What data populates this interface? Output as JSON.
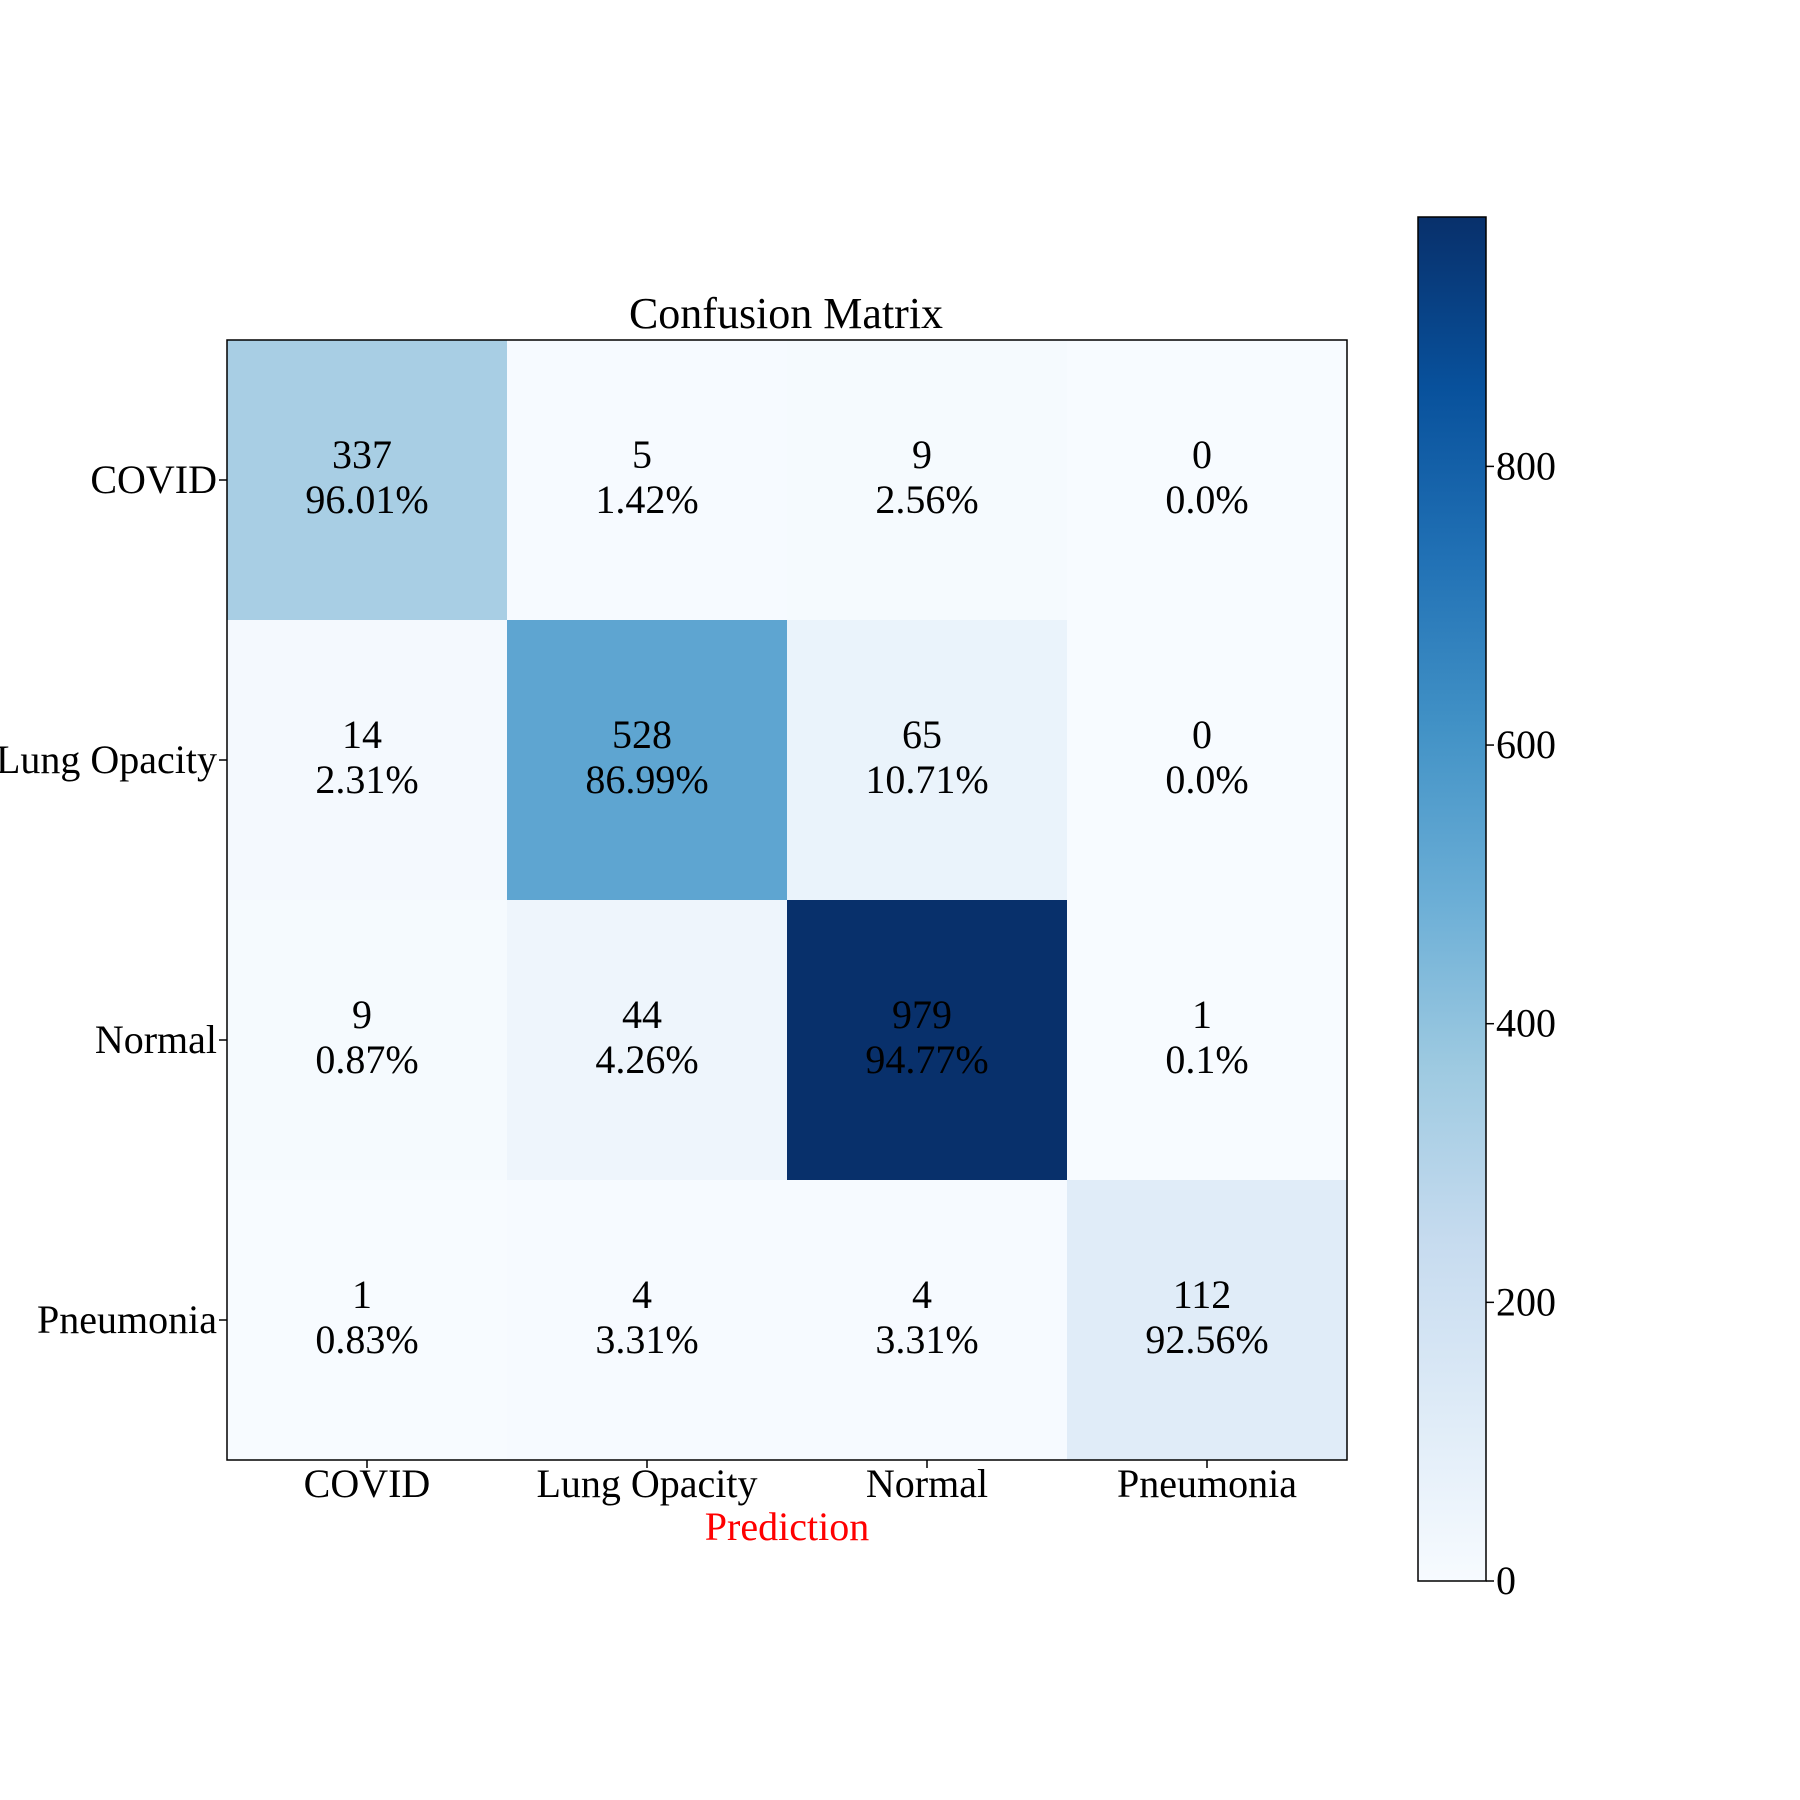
{
  "chart_data": {
    "type": "heatmap",
    "title": "Confusion Matrix",
    "xlabel": "Prediction",
    "ylabel": "",
    "x_categories": [
      "COVID",
      "Lung Opacity",
      "Normal",
      "Pneumonia"
    ],
    "y_categories": [
      "COVID",
      "Lung Opacity",
      "Normal",
      "Pneumonia"
    ],
    "values": [
      [
        337,
        5,
        9,
        0
      ],
      [
        14,
        528,
        65,
        0
      ],
      [
        9,
        44,
        979,
        1
      ],
      [
        1,
        4,
        4,
        112
      ]
    ],
    "cell_labels": [
      [
        "337",
        "5",
        "9",
        "0"
      ],
      [
        "14",
        "528",
        "65",
        "0"
      ],
      [
        "9",
        "44",
        "979",
        "1"
      ],
      [
        "1",
        "4",
        "4",
        "112"
      ]
    ],
    "percentages": [
      [
        "96.01%",
        "1.42%",
        "2.56%",
        "0.0%"
      ],
      [
        "2.31%",
        "86.99%",
        "10.71%",
        "0.0%"
      ],
      [
        "0.87%",
        "4.26%",
        "94.77%",
        "0.1%"
      ],
      [
        "0.83%",
        "3.31%",
        "3.31%",
        "92.56%"
      ]
    ],
    "colorbar": {
      "range": [
        0,
        979
      ],
      "ticks": [
        0,
        200,
        400,
        600,
        800
      ],
      "tick_labels": [
        "0",
        "200",
        "400",
        "600",
        "800"
      ],
      "colormap": "Blues"
    },
    "colors": {
      "xlabel": "#ff0000",
      "text": "#000000",
      "cmap_low": "#f7fbff",
      "cmap_high": "#08306b"
    }
  }
}
